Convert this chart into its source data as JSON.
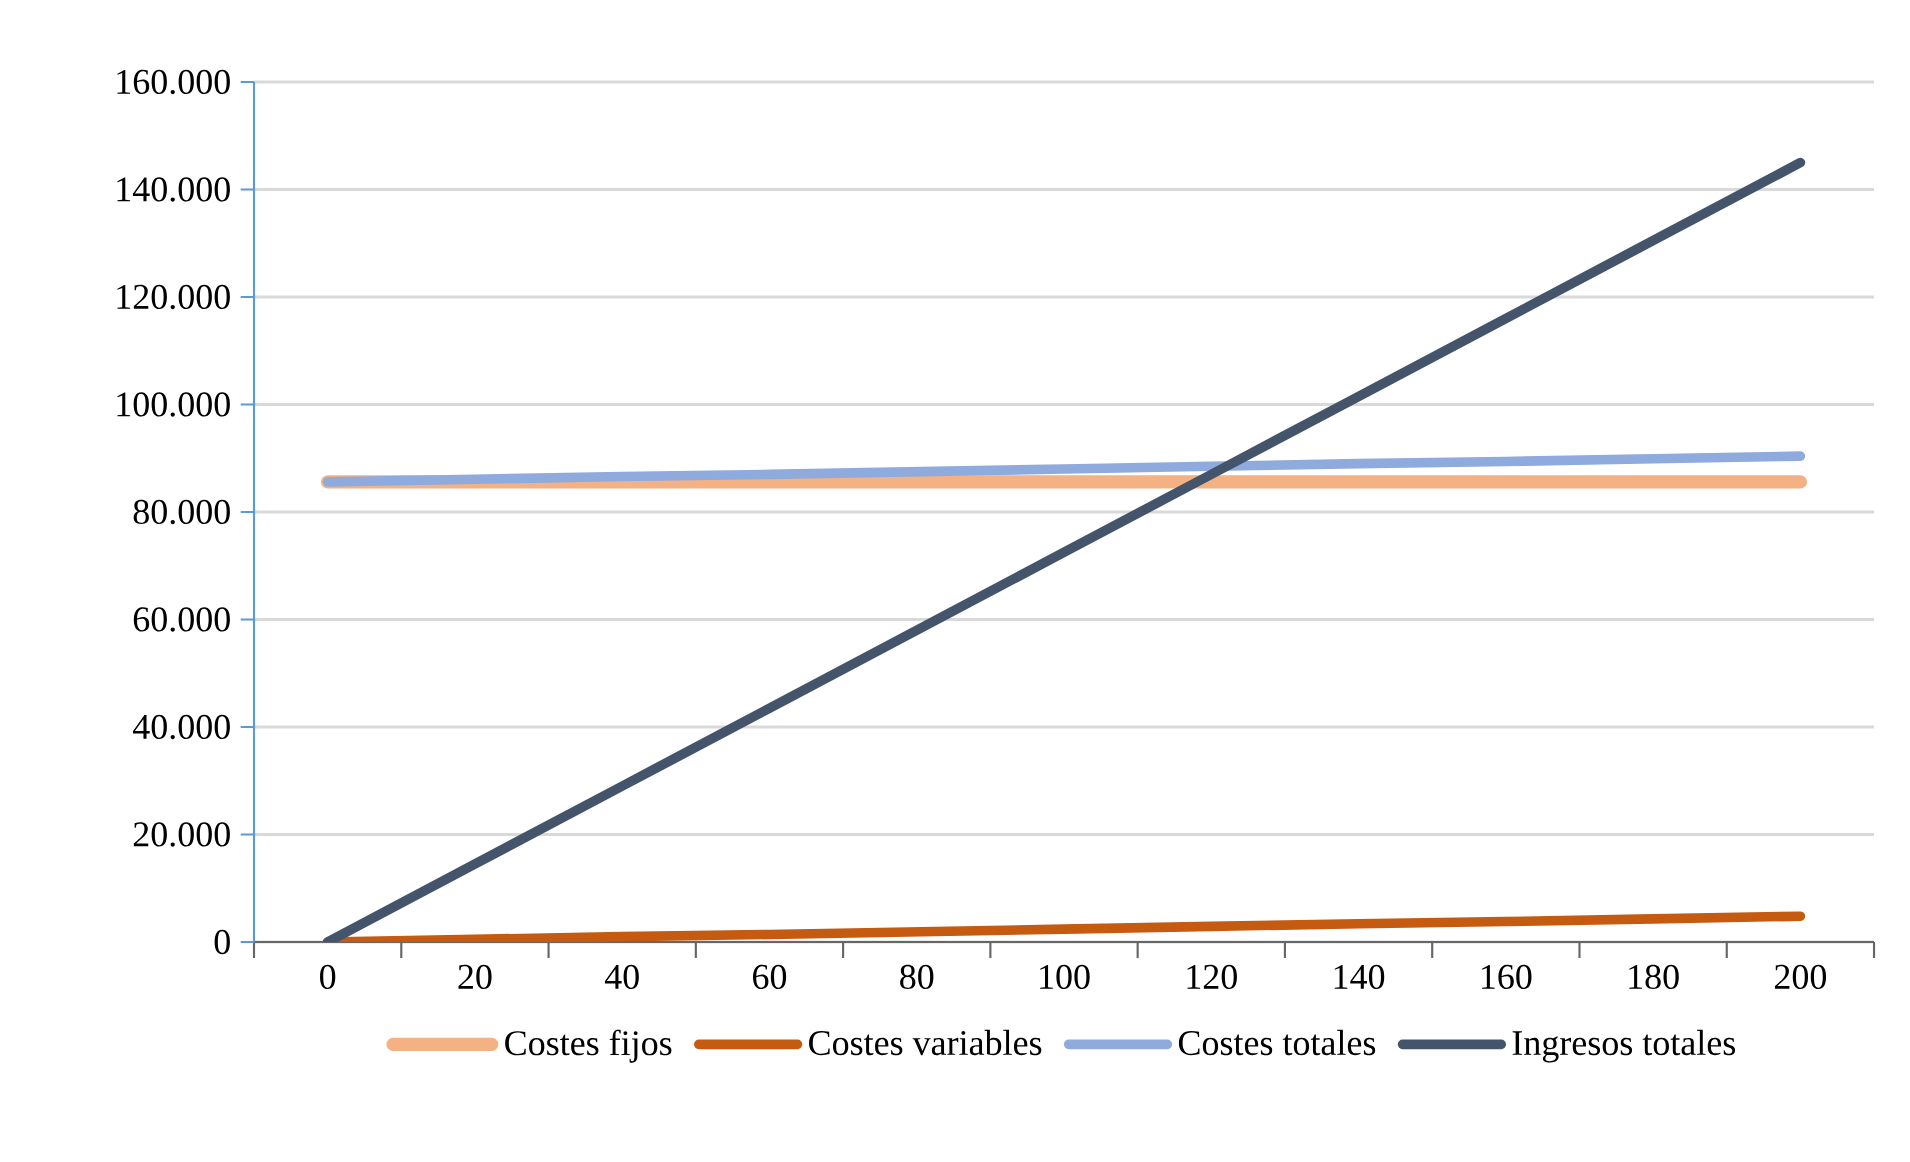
{
  "chart_data": {
    "type": "line",
    "categories": [
      "0",
      "20",
      "40",
      "60",
      "80",
      "100",
      "120",
      "140",
      "160",
      "180",
      "200"
    ],
    "series": [
      {
        "name": "Costes fijos",
        "color": "#f4b183",
        "values": [
          85600,
          85600,
          85600,
          85600,
          85600,
          85600,
          85600,
          85600,
          85600,
          85600,
          85600
        ]
      },
      {
        "name": "Costes variables",
        "color": "#c55a11",
        "values": [
          0,
          500,
          1000,
          1400,
          1900,
          2400,
          2900,
          3400,
          3800,
          4300,
          4800
        ]
      },
      {
        "name": "Costes totales",
        "color": "#8faadc",
        "values": [
          85600,
          86100,
          86600,
          87000,
          87500,
          88000,
          88500,
          89000,
          89400,
          89900,
          90400
        ]
      },
      {
        "name": "Ingresos totales",
        "color": "#44546a",
        "values": [
          0,
          14500,
          29000,
          43500,
          58000,
          72500,
          87000,
          101500,
          116000,
          130500,
          145000
        ]
      }
    ],
    "ylim": [
      0,
      160000
    ],
    "yticks": [
      0,
      {
        "value": 20000,
        "label": "20.000"
      },
      {
        "value": 40000,
        "label": "40.000"
      },
      {
        "value": 60000,
        "label": "60.000"
      },
      {
        "value": 80000,
        "label": "80.000"
      },
      {
        "value": 100000,
        "label": "100.000"
      },
      {
        "value": 120000,
        "label": "120.000"
      },
      {
        "value": 140000,
        "label": "140.000"
      },
      {
        "value": 160000,
        "label": "160.000"
      }
    ],
    "grid": "y",
    "legend": "bottom",
    "marker": "none",
    "line_style": "solid"
  }
}
